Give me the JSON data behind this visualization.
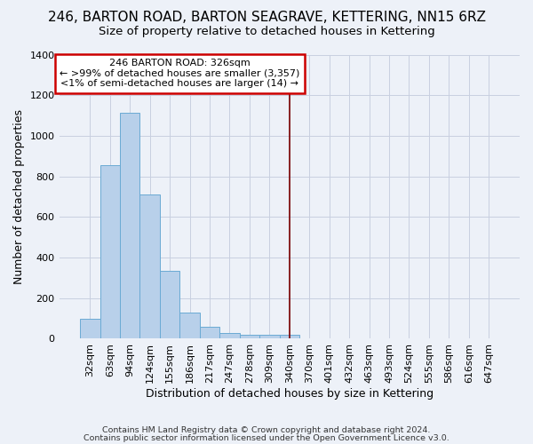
{
  "title": "246, BARTON ROAD, BARTON SEAGRAVE, KETTERING, NN15 6RZ",
  "subtitle": "Size of property relative to detached houses in Kettering",
  "xlabel": "Distribution of detached houses by size in Kettering",
  "ylabel": "Number of detached properties",
  "categories": [
    "32sqm",
    "63sqm",
    "94sqm",
    "124sqm",
    "155sqm",
    "186sqm",
    "217sqm",
    "247sqm",
    "278sqm",
    "309sqm",
    "340sqm",
    "370sqm",
    "401sqm",
    "432sqm",
    "463sqm",
    "493sqm",
    "524sqm",
    "555sqm",
    "586sqm",
    "616sqm",
    "647sqm"
  ],
  "values": [
    100,
    855,
    1115,
    710,
    335,
    130,
    60,
    30,
    20,
    20,
    20,
    0,
    0,
    0,
    0,
    0,
    0,
    0,
    0,
    0,
    0
  ],
  "bar_color": "#b8d0ea",
  "bar_edge_color": "#6aaad4",
  "background_color": "#edf1f8",
  "grid_color": "#c8cfe0",
  "vline_color": "#7a0000",
  "annotation_line1": "246 BARTON ROAD: 326sqm",
  "annotation_line2": "← >99% of detached houses are smaller (3,357)",
  "annotation_line3": "<1% of semi-detached houses are larger (14) →",
  "annotation_box_color": "#ffffff",
  "annotation_border_color": "#cc0000",
  "ylim": [
    0,
    1400
  ],
  "yticks": [
    0,
    200,
    400,
    600,
    800,
    1000,
    1200,
    1400
  ],
  "footer_line1": "Contains HM Land Registry data © Crown copyright and database right 2024.",
  "footer_line2": "Contains public sector information licensed under the Open Government Licence v3.0.",
  "title_fontsize": 11,
  "subtitle_fontsize": 9.5,
  "xlabel_fontsize": 9,
  "ylabel_fontsize": 9,
  "tick_fontsize": 8,
  "vline_x_bar_index": 10
}
